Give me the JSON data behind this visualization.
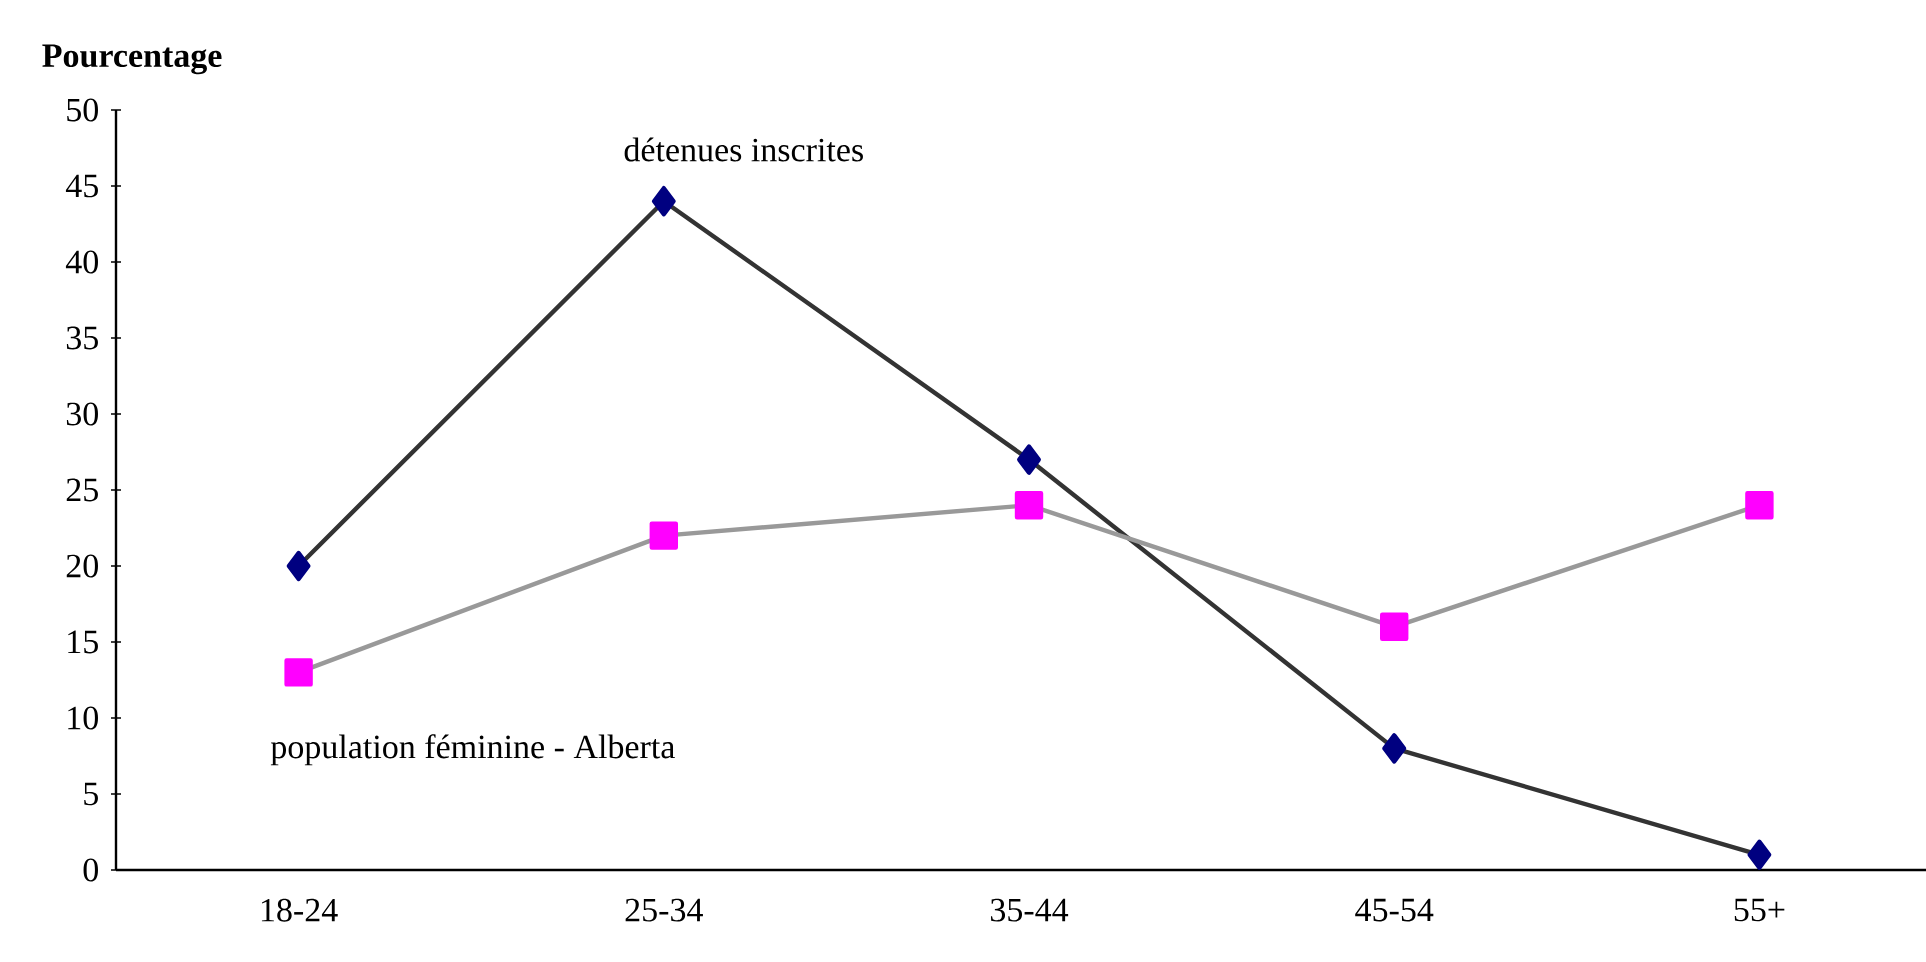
{
  "chart_data": {
    "type": "line",
    "ylabel": "Pourcentage",
    "categories": [
      "18-24",
      "25-34",
      "35-44",
      "45-54",
      "55+"
    ],
    "series": [
      {
        "name": "détenues inscrites",
        "color": "#000080",
        "marker": "diamond",
        "values": [
          20,
          44,
          27,
          8,
          1
        ]
      },
      {
        "name": "population féminine - Alberta",
        "color": "#ff00ff",
        "marker": "square",
        "values": [
          13,
          22,
          24,
          16,
          24
        ]
      }
    ],
    "ylim": [
      0,
      50
    ],
    "yticks": [
      0,
      5,
      10,
      15,
      20,
      25,
      30,
      35,
      40,
      45,
      50
    ],
    "grid": false,
    "legend": false
  }
}
